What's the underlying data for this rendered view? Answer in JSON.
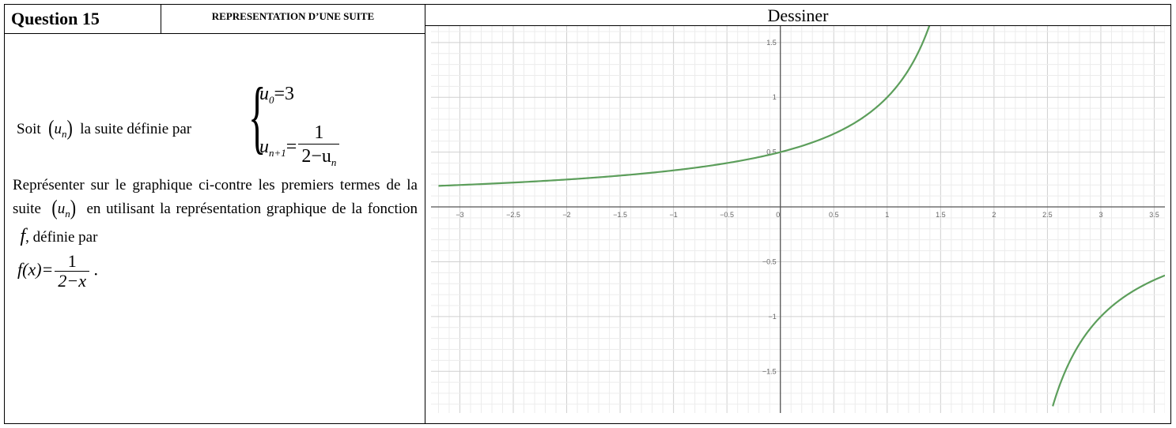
{
  "header": {
    "question": "Question 15",
    "topic": "REPRESENTATION D’UNE SUITE",
    "draw_label": "Dessiner"
  },
  "statement": {
    "intro_prefix": "Soit",
    "intro_suffix": "la suite définie par",
    "sequence_symbol": "u",
    "sequence_index": "n",
    "initial_term_lhs_sub": "0",
    "initial_term_rhs": "=3",
    "recurrence_lhs_sub": "n+1",
    "recurrence_numerator": "1",
    "recurrence_denominator": "2−u",
    "recurrence_denominator_sub": "n",
    "instruction_part1": "Représenter sur le graphique ci-contre les premiers termes de la suite",
    "instruction_part2": "en utilisant la représentation graphique de la fonction",
    "function_name": "f",
    "instruction_part3": ", définie par",
    "fx_lhs": "f(x)=",
    "fx_numerator": "1",
    "fx_denominator": "2−x",
    "fx_end": "."
  },
  "chart_data": {
    "type": "line",
    "function": "f(x) = 1/(2-x)",
    "series": [
      {
        "values_left_branch": [
          [
            -3.2,
            0.1923
          ],
          [
            -3,
            0.2
          ],
          [
            -2.5,
            0.2222
          ],
          [
            -2,
            0.25
          ],
          [
            -1.5,
            0.2857
          ],
          [
            -1,
            0.3333
          ],
          [
            -0.5,
            0.4
          ],
          [
            0,
            0.5
          ],
          [
            0.5,
            0.6667
          ],
          [
            1,
            1
          ],
          [
            1.25,
            1.3333
          ],
          [
            1.4,
            1.6667
          ]
        ],
        "values_right_branch": [
          [
            2.55,
            -1.8182
          ],
          [
            2.75,
            -1.3333
          ],
          [
            3,
            -1
          ],
          [
            3.25,
            -0.8
          ],
          [
            3.5,
            -0.6667
          ],
          [
            3.6,
            -0.625
          ]
        ]
      }
    ],
    "xlim": [
      -3.27,
      3.6
    ],
    "ylim": [
      -1.88,
      1.65
    ],
    "x_ticks": [
      "−3",
      "−2.5",
      "−2",
      "−1.5",
      "−1",
      "−0.5",
      "0",
      "0.5",
      "1",
      "1.5",
      "2",
      "2.5",
      "3",
      "3.5"
    ],
    "y_ticks": [
      "1.5",
      "1",
      "0.5",
      "−0.5",
      "−1",
      "−1.5"
    ],
    "grid": true,
    "line_color": "#5c9e5b",
    "grid_major_color": "#d0d0d0",
    "grid_minor_color": "#ececec",
    "axis_color": "#555555"
  }
}
